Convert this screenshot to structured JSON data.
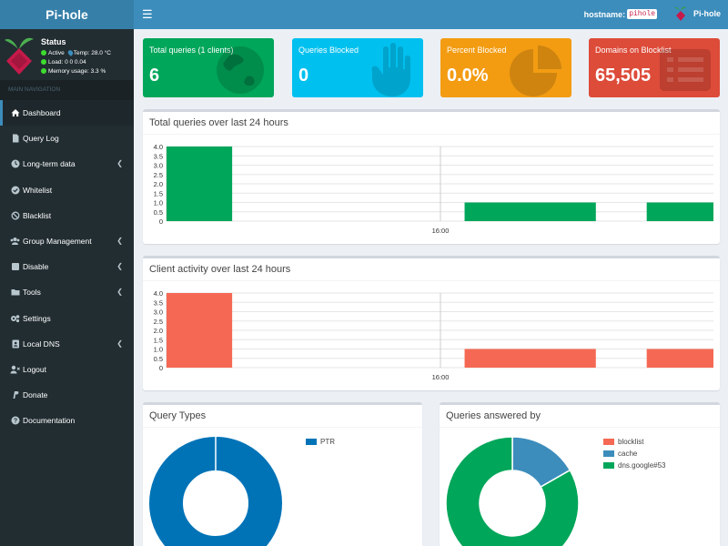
{
  "app": {
    "title": "Pi-hole"
  },
  "topbar": {
    "hostname_label": "hostname:",
    "hostname_value": "pihole",
    "user_label": "Pi-hole"
  },
  "status": {
    "title": "Status",
    "active": "Active",
    "temp": "Temp: 28.0 °C",
    "load": "Load:  0  0  0.04",
    "memory": "Memory usage:  3.3 %"
  },
  "nav": {
    "header": "MAIN NAVIGATION",
    "items": [
      {
        "label": "Dashboard",
        "icon": "home-icon",
        "caret": false
      },
      {
        "label": "Query Log",
        "icon": "file-icon",
        "caret": false
      },
      {
        "label": "Long-term data",
        "icon": "clock-icon",
        "caret": true
      },
      {
        "label": "Whitelist",
        "icon": "check-circle-icon",
        "caret": false
      },
      {
        "label": "Blacklist",
        "icon": "ban-icon",
        "caret": false
      },
      {
        "label": "Group Management",
        "icon": "users-icon",
        "caret": true
      },
      {
        "label": "Disable",
        "icon": "stop-icon",
        "caret": true
      },
      {
        "label": "Tools",
        "icon": "folder-icon",
        "caret": true
      },
      {
        "label": "Settings",
        "icon": "gears-icon",
        "caret": false
      },
      {
        "label": "Local DNS",
        "icon": "address-book-icon",
        "caret": true
      },
      {
        "label": "Logout",
        "icon": "user-times-icon",
        "caret": false
      },
      {
        "label": "Donate",
        "icon": "paypal-icon",
        "caret": false
      },
      {
        "label": "Documentation",
        "icon": "question-circle-icon",
        "caret": false
      }
    ]
  },
  "infoboxes": [
    {
      "label": "Total queries (1 clients)",
      "value": "6",
      "color": "#00a65a",
      "icon": "globe-icon"
    },
    {
      "label": "Queries Blocked",
      "value": "0",
      "color": "#00c0ef",
      "icon": "hand-icon"
    },
    {
      "label": "Percent Blocked",
      "value": "0.0%",
      "color": "#f39c12",
      "icon": "pie-chart-icon"
    },
    {
      "label": "Domains on Blocklist",
      "value": "65,505",
      "color": "#dd4b39",
      "icon": "list-icon"
    }
  ],
  "panels": {
    "total_queries_title": "Total queries over last 24 hours",
    "client_activity_title": "Client activity over last 24 hours",
    "query_types_title": "Query Types",
    "answered_by_title": "Queries answered by"
  },
  "chart_data": [
    {
      "type": "bar",
      "title": "Total queries over last 24 hours",
      "color": "#00a65a",
      "ylim": [
        0,
        4.0
      ],
      "yticks": [
        "4.0",
        "3.5",
        "3.0",
        "2.5",
        "2.0",
        "1.5",
        "1.0",
        "0.5",
        "0"
      ],
      "xtick_label": "16:00",
      "bars": [
        {
          "x_start": 0,
          "x_end": 0.12,
          "value": 4
        },
        {
          "x_start": 0.545,
          "x_end": 0.785,
          "value": 1
        },
        {
          "x_start": 0.878,
          "x_end": 1.0,
          "value": 1
        }
      ]
    },
    {
      "type": "bar",
      "title": "Client activity over last 24 hours",
      "color": "#f56954",
      "ylim": [
        0,
        4.0
      ],
      "yticks": [
        "4.0",
        "3.5",
        "3.0",
        "2.5",
        "2.0",
        "1.5",
        "1.0",
        "0.5",
        "0"
      ],
      "xtick_label": "16:00",
      "bars": [
        {
          "x_start": 0,
          "x_end": 0.12,
          "value": 4
        },
        {
          "x_start": 0.545,
          "x_end": 0.785,
          "value": 1
        },
        {
          "x_start": 0.878,
          "x_end": 1.0,
          "value": 1
        }
      ]
    },
    {
      "type": "pie",
      "title": "Query Types",
      "slices": [
        {
          "label": "PTR",
          "value": 100,
          "color": "#0073b7"
        }
      ]
    },
    {
      "type": "pie",
      "title": "Queries answered by",
      "slices": [
        {
          "label": "blocklist",
          "value": 0.01,
          "color": "#f56954"
        },
        {
          "label": "cache",
          "value": 16.7,
          "color": "#3c8dbc"
        },
        {
          "label": "dns.google#53",
          "value": 83.3,
          "color": "#00a65a"
        }
      ]
    }
  ]
}
